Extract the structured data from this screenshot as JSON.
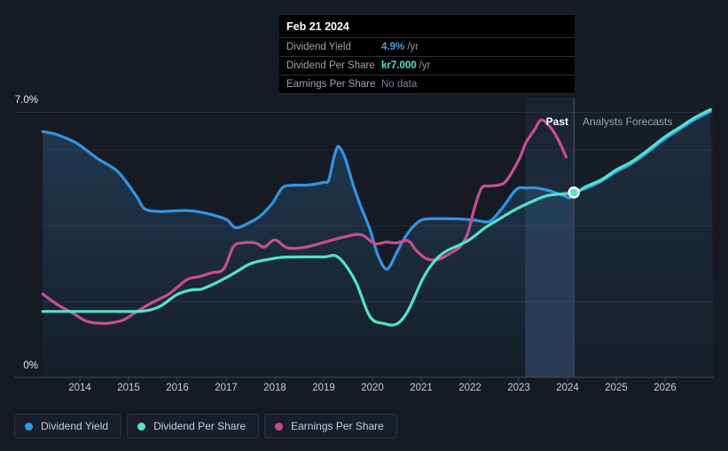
{
  "tooltip": {
    "date": "Feb 21 2024",
    "rows": [
      {
        "label": "Dividend Yield",
        "value": "4.9%",
        "suffix": "/yr",
        "color": "#3E9EEA"
      },
      {
        "label": "Dividend Per Share",
        "value": "kr7.000",
        "suffix": "/yr",
        "color": "#4DE3C9"
      },
      {
        "label": "Earnings Per Share",
        "value": "No data",
        "suffix": "",
        "color": "#7A828D"
      }
    ]
  },
  "annotations": {
    "past_label": "Past",
    "forecast_label": "Analysts Forecasts"
  },
  "axis": {
    "y_top_label": "7.0%",
    "y_bottom_label": "0%"
  },
  "legend": [
    {
      "id": "dividend-yield",
      "label": "Dividend Yield",
      "color": "#2B9BE8"
    },
    {
      "id": "dividend-per-share",
      "label": "Dividend Per Share",
      "color": "#55E2C5"
    },
    {
      "id": "earnings-per-share",
      "label": "Earnings Per Share",
      "color": "#D0488F"
    }
  ],
  "colors": {
    "background": "#151A23",
    "yield_line": "#3194E4",
    "dps_line": "#55E2C5",
    "eps_line": "#C94D90",
    "grid": "#232B37",
    "top_gridline": "#2B3443",
    "bottom_axis": "#414B5A",
    "divider": "#4A5668",
    "past_fill": "rgba(58,138,200,0.30)",
    "forecast_fill": "rgba(58,138,200,0.14)",
    "highlight_band": "rgba(86,140,200,0.28)"
  },
  "chart_data": {
    "type": "line",
    "title": "Dividend history and forecast",
    "x_unit": "year",
    "x_ticks": [
      2014,
      2015,
      2016,
      2017,
      2018,
      2019,
      2020,
      2021,
      2022,
      2023,
      2024,
      2025,
      2026
    ],
    "x_range": [
      2013.24,
      2027.0
    ],
    "y_axis": {
      "min": 0,
      "max": 7,
      "top_label": "7.0%",
      "bottom_label": "0%",
      "gridline_values": [
        2,
        4,
        6
      ],
      "unit": "%"
    },
    "past_until": 2024.13,
    "cursor": {
      "date": "Feb 21 2024",
      "x": 2024.13,
      "dividend_yield_pct": 4.9,
      "dividend_per_share": "kr7.000",
      "earnings_per_share": "No data"
    },
    "note": "Dividend Yield y-values are percent on the visible axis. Dividend Per Share and Earnings Per Share are plotted on hidden scales; their y-values below are positions read against the 0-7% axis. kr7.000 corresponds to position 4.88 at the cursor.",
    "series": [
      {
        "name": "Dividend Yield",
        "unit": "%",
        "points_past": [
          [
            2013.24,
            6.49
          ],
          [
            2013.5,
            6.42
          ],
          [
            2013.8,
            6.27
          ],
          [
            2014.0,
            6.13
          ],
          [
            2014.36,
            5.78
          ],
          [
            2014.78,
            5.43
          ],
          [
            2015.15,
            4.8
          ],
          [
            2015.33,
            4.45
          ],
          [
            2015.64,
            4.38
          ],
          [
            2016.0,
            4.4
          ],
          [
            2016.25,
            4.4
          ],
          [
            2016.6,
            4.33
          ],
          [
            2017.0,
            4.17
          ],
          [
            2017.2,
            3.95
          ],
          [
            2017.5,
            4.1
          ],
          [
            2017.7,
            4.26
          ],
          [
            2017.95,
            4.6
          ],
          [
            2018.15,
            5.0
          ],
          [
            2018.35,
            5.07
          ],
          [
            2018.7,
            5.08
          ],
          [
            2019.0,
            5.15
          ],
          [
            2019.1,
            5.2
          ],
          [
            2019.2,
            5.75
          ],
          [
            2019.27,
            6.05
          ],
          [
            2019.33,
            6.07
          ],
          [
            2019.45,
            5.75
          ],
          [
            2019.6,
            5.1
          ],
          [
            2019.75,
            4.55
          ],
          [
            2019.95,
            3.9
          ],
          [
            2020.12,
            3.2
          ],
          [
            2020.3,
            2.86
          ],
          [
            2020.5,
            3.3
          ],
          [
            2020.65,
            3.66
          ],
          [
            2020.85,
            4.0
          ],
          [
            2021.05,
            4.17
          ],
          [
            2021.4,
            4.19
          ],
          [
            2021.8,
            4.18
          ],
          [
            2022.1,
            4.15
          ],
          [
            2022.4,
            4.12
          ],
          [
            2022.65,
            4.45
          ],
          [
            2022.95,
            4.96
          ],
          [
            2023.15,
            5.0
          ],
          [
            2023.35,
            5.0
          ],
          [
            2023.6,
            4.94
          ],
          [
            2023.95,
            4.78
          ],
          [
            2024.05,
            4.74
          ],
          [
            2024.13,
            4.88
          ]
        ],
        "points_forecast": [
          [
            2024.13,
            4.88
          ],
          [
            2024.4,
            5.0
          ],
          [
            2024.7,
            5.18
          ],
          [
            2025.0,
            5.43
          ],
          [
            2025.3,
            5.63
          ],
          [
            2025.6,
            5.9
          ],
          [
            2026.0,
            6.3
          ],
          [
            2026.3,
            6.55
          ],
          [
            2026.6,
            6.8
          ],
          [
            2026.93,
            7.02
          ]
        ]
      },
      {
        "name": "Dividend Per Share",
        "unit": "axis-position",
        "points_past": [
          [
            2013.24,
            1.74
          ],
          [
            2014.0,
            1.74
          ],
          [
            2014.7,
            1.74
          ],
          [
            2015.3,
            1.75
          ],
          [
            2015.65,
            1.88
          ],
          [
            2016.0,
            2.19
          ],
          [
            2016.3,
            2.31
          ],
          [
            2016.5,
            2.33
          ],
          [
            2016.8,
            2.5
          ],
          [
            2017.1,
            2.7
          ],
          [
            2017.5,
            3.0
          ],
          [
            2017.9,
            3.12
          ],
          [
            2018.15,
            3.17
          ],
          [
            2018.5,
            3.18
          ],
          [
            2019.0,
            3.18
          ],
          [
            2019.3,
            3.17
          ],
          [
            2019.65,
            2.54
          ],
          [
            2019.95,
            1.6
          ],
          [
            2020.24,
            1.42
          ],
          [
            2020.5,
            1.41
          ],
          [
            2020.73,
            1.76
          ],
          [
            2021.04,
            2.62
          ],
          [
            2021.27,
            3.06
          ],
          [
            2021.5,
            3.32
          ],
          [
            2021.95,
            3.6
          ],
          [
            2022.3,
            3.94
          ],
          [
            2022.6,
            4.18
          ],
          [
            2022.96,
            4.45
          ],
          [
            2023.27,
            4.64
          ],
          [
            2023.6,
            4.8
          ],
          [
            2024.13,
            4.88
          ]
        ],
        "points_forecast": [
          [
            2024.13,
            4.9
          ],
          [
            2024.4,
            5.05
          ],
          [
            2024.7,
            5.22
          ],
          [
            2025.0,
            5.48
          ],
          [
            2025.3,
            5.68
          ],
          [
            2025.6,
            5.95
          ],
          [
            2026.0,
            6.35
          ],
          [
            2026.3,
            6.6
          ],
          [
            2026.6,
            6.85
          ],
          [
            2026.93,
            7.07
          ]
        ]
      },
      {
        "name": "Earnings Per Share",
        "unit": "axis-position",
        "points_past": [
          [
            2013.24,
            2.2
          ],
          [
            2013.55,
            1.91
          ],
          [
            2013.85,
            1.7
          ],
          [
            2014.1,
            1.5
          ],
          [
            2014.3,
            1.44
          ],
          [
            2014.6,
            1.43
          ],
          [
            2014.9,
            1.52
          ],
          [
            2015.15,
            1.72
          ],
          [
            2015.45,
            1.95
          ],
          [
            2015.65,
            2.08
          ],
          [
            2015.85,
            2.22
          ],
          [
            2016.2,
            2.58
          ],
          [
            2016.45,
            2.66
          ],
          [
            2016.7,
            2.76
          ],
          [
            2016.95,
            2.86
          ],
          [
            2017.15,
            3.45
          ],
          [
            2017.35,
            3.55
          ],
          [
            2017.6,
            3.55
          ],
          [
            2017.78,
            3.44
          ],
          [
            2018.0,
            3.63
          ],
          [
            2018.25,
            3.42
          ],
          [
            2018.6,
            3.43
          ],
          [
            2019.0,
            3.56
          ],
          [
            2019.4,
            3.7
          ],
          [
            2019.76,
            3.77
          ],
          [
            2020.05,
            3.53
          ],
          [
            2020.28,
            3.57
          ],
          [
            2020.5,
            3.55
          ],
          [
            2020.73,
            3.61
          ],
          [
            2020.9,
            3.35
          ],
          [
            2021.1,
            3.14
          ],
          [
            2021.35,
            3.11
          ],
          [
            2021.6,
            3.28
          ],
          [
            2021.8,
            3.45
          ],
          [
            2021.95,
            3.79
          ],
          [
            2022.1,
            4.5
          ],
          [
            2022.24,
            5.0
          ],
          [
            2022.4,
            5.05
          ],
          [
            2022.6,
            5.08
          ],
          [
            2022.75,
            5.2
          ],
          [
            2023.0,
            5.74
          ],
          [
            2023.15,
            6.2
          ],
          [
            2023.33,
            6.55
          ],
          [
            2023.45,
            6.79
          ],
          [
            2023.6,
            6.68
          ],
          [
            2023.8,
            6.3
          ],
          [
            2023.97,
            5.82
          ]
        ],
        "points_forecast": []
      }
    ]
  }
}
